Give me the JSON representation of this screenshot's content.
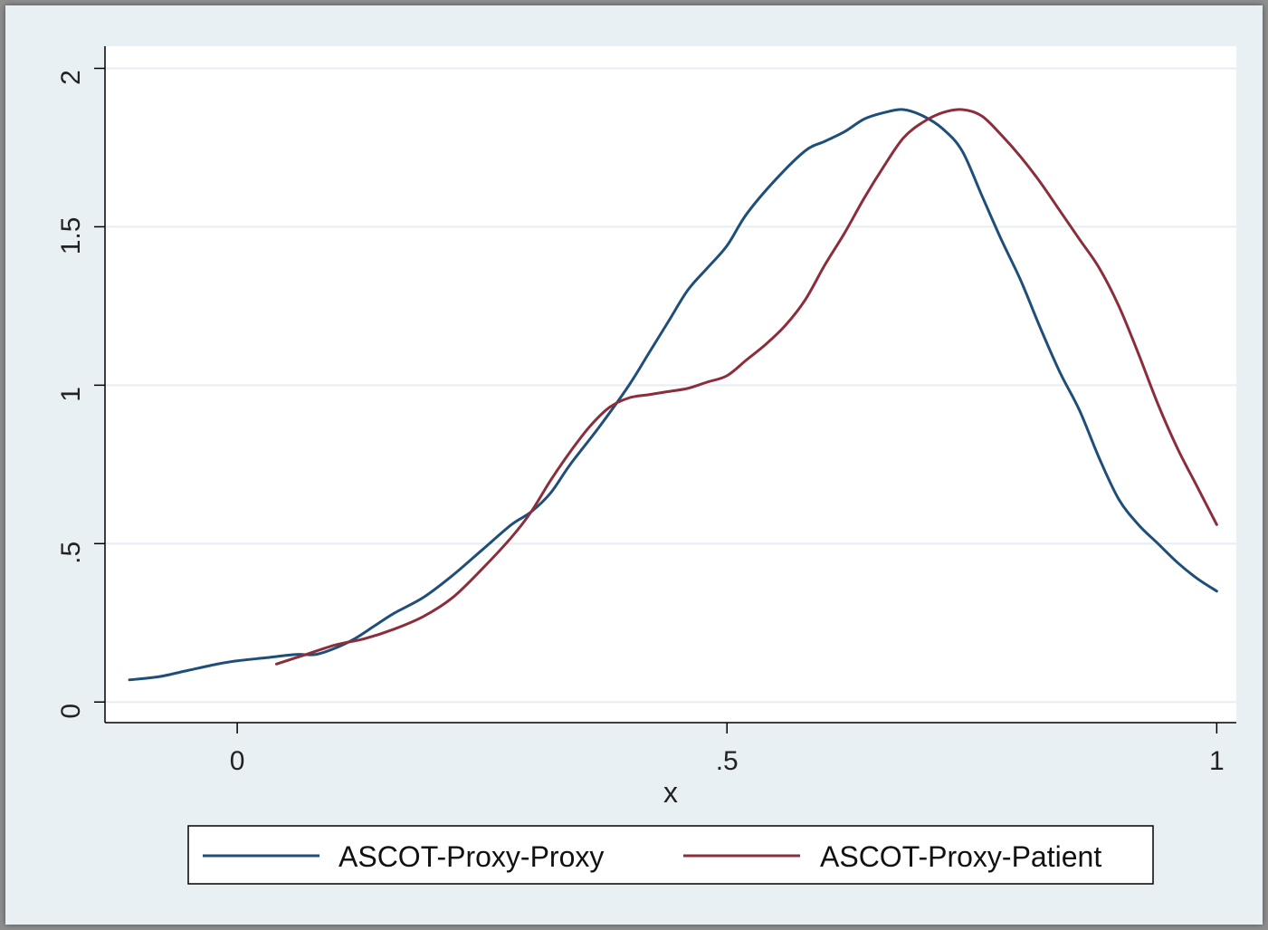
{
  "chart_data": {
    "type": "line",
    "title": "",
    "xlabel": "x",
    "ylabel": "",
    "xlim": [
      -0.135,
      1.02
    ],
    "ylim": [
      -0.065,
      2.07
    ],
    "xticks": [
      {
        "value": 0,
        "label": "0"
      },
      {
        "value": 0.5,
        "label": ".5"
      },
      {
        "value": 1,
        "label": "1"
      }
    ],
    "yticks": [
      {
        "value": 0,
        "label": "0"
      },
      {
        "value": 0.5,
        "label": ".5"
      },
      {
        "value": 1,
        "label": "1"
      },
      {
        "value": 1.5,
        "label": "1.5"
      },
      {
        "value": 2,
        "label": "2"
      }
    ],
    "grid": true,
    "legend_position": "bottom",
    "series": [
      {
        "name": "ASCOT-Proxy-Proxy",
        "color": "#1f4e79",
        "x": [
          -0.11,
          -0.08,
          -0.05,
          -0.02,
          0.0,
          0.03,
          0.06,
          0.08,
          0.1,
          0.12,
          0.14,
          0.16,
          0.19,
          0.22,
          0.25,
          0.28,
          0.3,
          0.32,
          0.34,
          0.37,
          0.4,
          0.42,
          0.44,
          0.46,
          0.48,
          0.5,
          0.52,
          0.55,
          0.58,
          0.6,
          0.62,
          0.64,
          0.66,
          0.68,
          0.7,
          0.72,
          0.74,
          0.76,
          0.78,
          0.8,
          0.82,
          0.84,
          0.86,
          0.88,
          0.9,
          0.92,
          0.94,
          0.96,
          0.98,
          1.0
        ],
        "y": [
          0.07,
          0.08,
          0.1,
          0.12,
          0.13,
          0.14,
          0.15,
          0.15,
          0.17,
          0.2,
          0.24,
          0.28,
          0.33,
          0.4,
          0.48,
          0.56,
          0.6,
          0.66,
          0.75,
          0.87,
          1.0,
          1.1,
          1.2,
          1.3,
          1.37,
          1.44,
          1.54,
          1.65,
          1.74,
          1.77,
          1.8,
          1.84,
          1.86,
          1.87,
          1.85,
          1.81,
          1.74,
          1.6,
          1.46,
          1.33,
          1.18,
          1.04,
          0.92,
          0.77,
          0.64,
          0.56,
          0.5,
          0.44,
          0.39,
          0.35
        ]
      },
      {
        "name": "ASCOT-Proxy-Patient",
        "color": "#8b2e3c",
        "x": [
          0.04,
          0.07,
          0.1,
          0.13,
          0.16,
          0.19,
          0.22,
          0.25,
          0.28,
          0.3,
          0.32,
          0.34,
          0.36,
          0.38,
          0.4,
          0.42,
          0.44,
          0.46,
          0.48,
          0.5,
          0.52,
          0.54,
          0.56,
          0.58,
          0.6,
          0.62,
          0.64,
          0.66,
          0.68,
          0.7,
          0.72,
          0.74,
          0.76,
          0.78,
          0.8,
          0.82,
          0.84,
          0.86,
          0.88,
          0.9,
          0.92,
          0.94,
          0.96,
          0.98,
          1.0
        ],
        "y": [
          0.12,
          0.15,
          0.18,
          0.2,
          0.23,
          0.27,
          0.33,
          0.42,
          0.52,
          0.6,
          0.7,
          0.79,
          0.87,
          0.93,
          0.96,
          0.97,
          0.98,
          0.99,
          1.01,
          1.03,
          1.08,
          1.13,
          1.19,
          1.27,
          1.38,
          1.48,
          1.59,
          1.69,
          1.78,
          1.83,
          1.86,
          1.87,
          1.85,
          1.79,
          1.72,
          1.64,
          1.55,
          1.46,
          1.37,
          1.25,
          1.1,
          0.94,
          0.8,
          0.68,
          0.56
        ]
      }
    ]
  }
}
